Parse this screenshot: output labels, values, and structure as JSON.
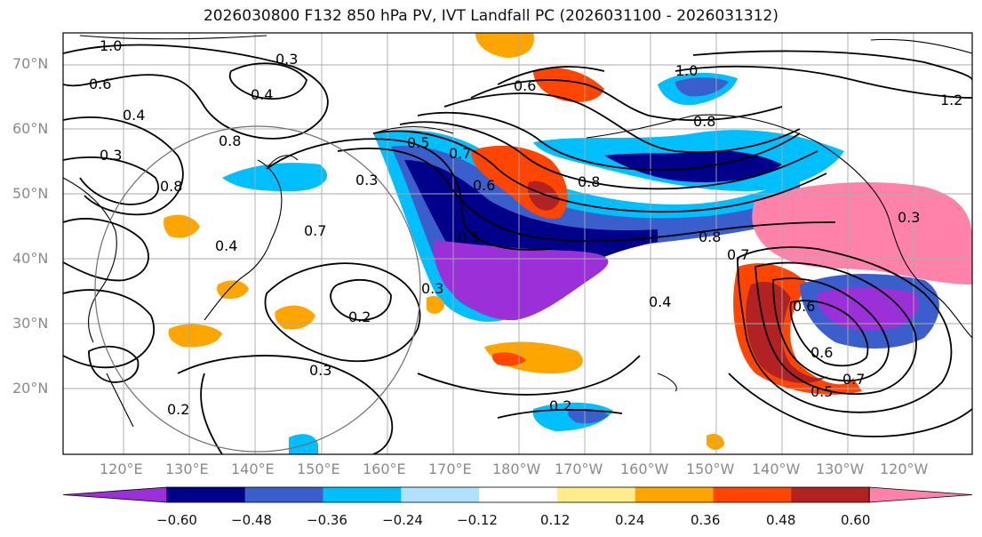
{
  "title": "2026030800 F132 850 hPa PV, IVT Landfall PC (2026031100 - 2026031312)",
  "lat_labels": [
    "70°N",
    "60°N",
    "50°N",
    "40°N",
    "30°N",
    "20°N"
  ],
  "lon_labels": [
    "120°E",
    "130°E",
    "140°E",
    "150°E",
    "160°E",
    "170°E",
    "180°W",
    "170°W",
    "160°W",
    "150°W",
    "140°W",
    "130°W",
    "120°W"
  ],
  "colorbar": {
    "colors": [
      "#9b30d9",
      "#00008b",
      "#3a5fcd",
      "#00bfff",
      "#b0e2ff",
      "#ffffff",
      "#ffec8b",
      "#ffa500",
      "#ff4500",
      "#b22222",
      "#ff82ab"
    ],
    "tick_labels": [
      "−0.60",
      "−0.48",
      "−0.36",
      "−0.24",
      "−0.12",
      "0.12",
      "0.24",
      "0.36",
      "0.48",
      "0.60"
    ]
  },
  "contour_labels": [
    {
      "text": "1.0",
      "id": "c1"
    },
    {
      "text": "0.6",
      "id": "c2"
    },
    {
      "text": "0.3",
      "id": "c3"
    },
    {
      "text": "0.4",
      "id": "c4"
    },
    {
      "text": "0.4",
      "id": "c5"
    },
    {
      "text": "0.8",
      "id": "c6"
    },
    {
      "text": "0.3",
      "id": "c7"
    },
    {
      "text": "0.8",
      "id": "c8"
    },
    {
      "text": "0.4",
      "id": "c9"
    },
    {
      "text": "0.3",
      "id": "c10"
    },
    {
      "text": "0.7",
      "id": "c11"
    },
    {
      "text": "0.5",
      "id": "c12"
    },
    {
      "text": "0.3",
      "id": "c13"
    },
    {
      "text": "0.2",
      "id": "c14"
    },
    {
      "text": "0.3",
      "id": "c15"
    },
    {
      "text": "0.2",
      "id": "c16"
    },
    {
      "text": "0.7",
      "id": "c17"
    },
    {
      "text": "0.6",
      "id": "c18"
    },
    {
      "text": "0.5",
      "id": "c19"
    },
    {
      "text": "0.8",
      "id": "c20"
    },
    {
      "text": "0.8",
      "id": "c21"
    },
    {
      "text": "0.7",
      "id": "c22"
    },
    {
      "text": "0.4",
      "id": "c23"
    },
    {
      "text": "0.2",
      "id": "c24"
    },
    {
      "text": "1.0",
      "id": "c25"
    },
    {
      "text": "0.6",
      "id": "c26"
    },
    {
      "text": "1.2",
      "id": "c27"
    },
    {
      "text": "0.3",
      "id": "c28"
    },
    {
      "text": "0.6",
      "id": "c29"
    },
    {
      "text": "0.7",
      "id": "c30"
    },
    {
      "text": "0.5",
      "id": "c31"
    },
    {
      "text": "0.6",
      "id": "c32"
    },
    {
      "text": "0.8",
      "id": "c33"
    }
  ]
}
